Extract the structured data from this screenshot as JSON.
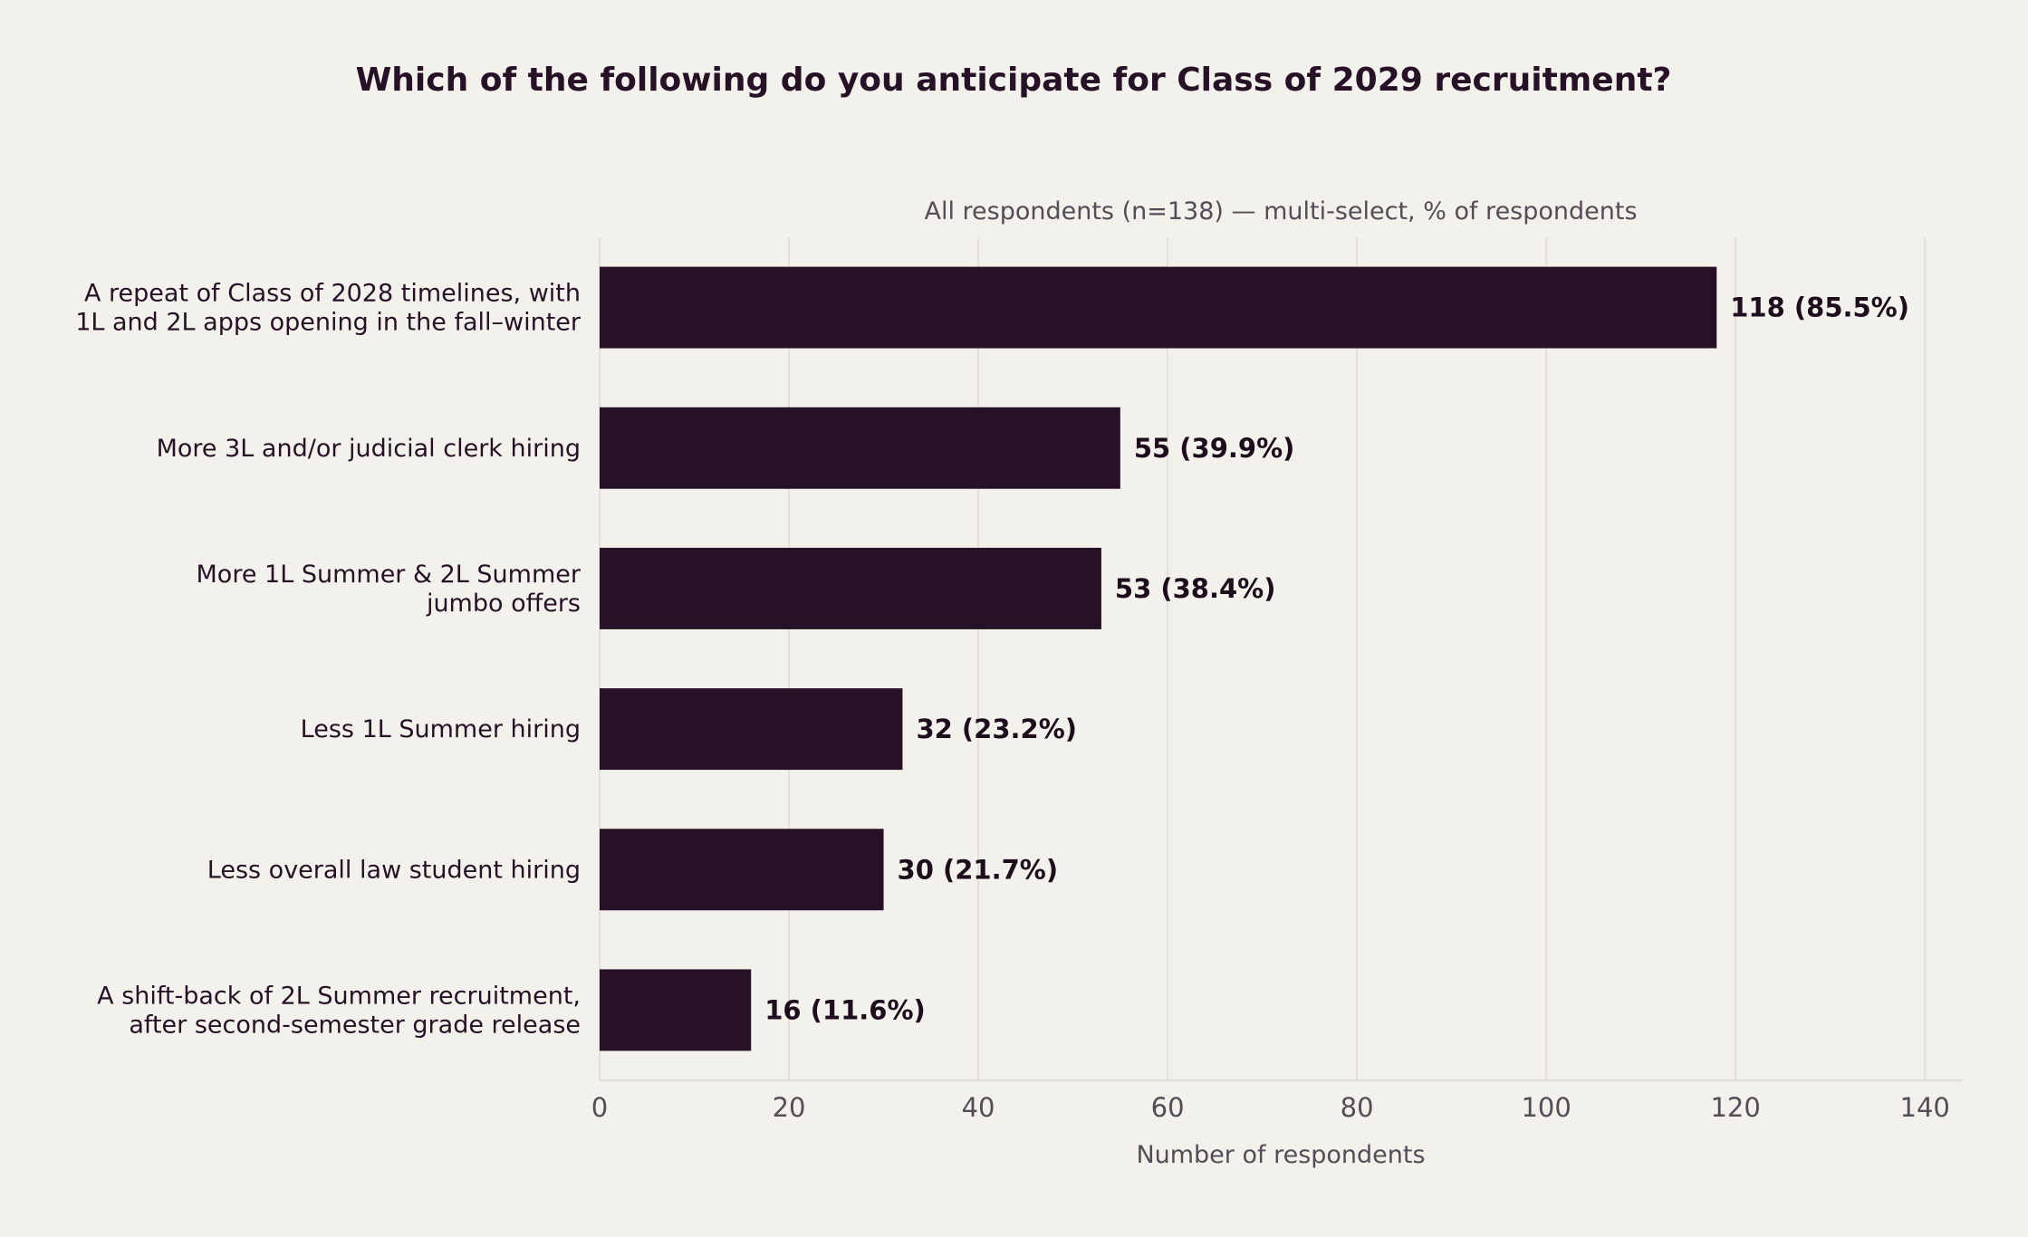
{
  "chart_data": {
    "type": "bar",
    "orientation": "horizontal",
    "title": "Which of the following do you anticipate for Class of 2029 recruitment?",
    "subtitle": "All respondents (n=138) — multi-select, % of respondents",
    "xlabel": "Number of respondents",
    "ylabel": "",
    "xlim": [
      0,
      144
    ],
    "xticks": [
      0,
      20,
      40,
      60,
      80,
      100,
      120,
      140
    ],
    "grid": "vertical",
    "bar_color": "#261126",
    "categories": [
      [
        "A repeat of Class of 2028 timelines, with",
        "1L and 2L apps opening in the fall–winter"
      ],
      [
        "More 3L and/or judicial clerk hiring"
      ],
      [
        "More 1L Summer & 2L Summer",
        "jumbo offers"
      ],
      [
        "Less 1L Summer hiring"
      ],
      [
        "Less overall law student hiring"
      ],
      [
        "A shift-back of 2L Summer recruitment,",
        "after second-semester grade release"
      ]
    ],
    "values": [
      118,
      55,
      53,
      32,
      30,
      16
    ],
    "data_labels": [
      "118  (85.5%)",
      "55  (39.9%)",
      "53  (38.4%)",
      "32  (23.2%)",
      "30  (21.7%)",
      "16  (11.6%)"
    ]
  }
}
